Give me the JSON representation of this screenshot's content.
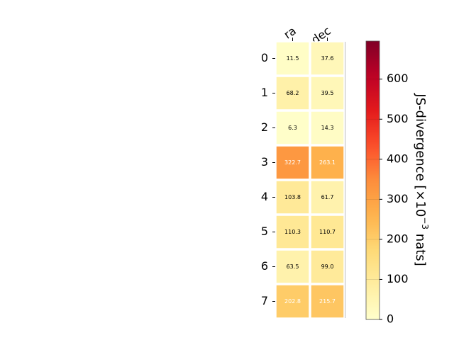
{
  "chart_data": {
    "type": "heatmap",
    "columns": [
      "ra",
      "dec"
    ],
    "rows": [
      "0",
      "1",
      "2",
      "3",
      "4",
      "5",
      "6",
      "7"
    ],
    "values": [
      [
        11.5,
        37.6
      ],
      [
        68.2,
        39.5
      ],
      [
        6.3,
        14.3
      ],
      [
        322.7,
        263.1
      ],
      [
        103.8,
        61.7
      ],
      [
        110.3,
        110.7
      ],
      [
        63.5,
        99.0
      ],
      [
        202.8,
        215.7
      ]
    ],
    "value_labels": [
      [
        "11.5",
        "37.6"
      ],
      [
        "68.2",
        "39.5"
      ],
      [
        "6.3",
        "14.3"
      ],
      [
        "322.7",
        "263.1"
      ],
      [
        "103.8",
        "61.7"
      ],
      [
        "110.3",
        "110.7"
      ],
      [
        "63.5",
        "99.0"
      ],
      [
        "202.8",
        "215.7"
      ]
    ],
    "colorbar": {
      "label_prefix": "JS-divergence [×10",
      "label_exponent": "−3",
      "label_suffix": " nats]",
      "vmin": 0,
      "vmax": 695,
      "ticks": [
        0,
        100,
        200,
        300,
        400,
        500,
        600
      ],
      "colormap": "YlOrRd"
    },
    "colors": {
      "cell_border": "#ffffff",
      "text_dark": "#000000",
      "text_light": "#ffffff"
    }
  }
}
